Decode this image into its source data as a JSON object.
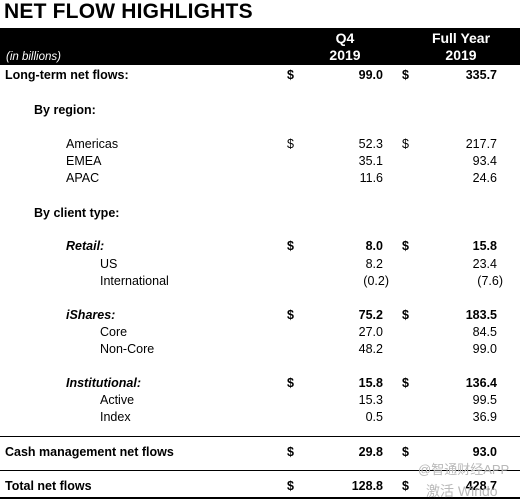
{
  "title": "NET FLOW HIGHLIGHTS",
  "units": "(in billions)",
  "columns": {
    "q4_line1": "Q4",
    "q4_line2": "2019",
    "fy_line1": "Full Year",
    "fy_line2": "2019"
  },
  "currency": "$",
  "rows": [
    {
      "label": "Long-term net flows:",
      "q4": "99.0",
      "fy": "335.7"
    },
    {
      "label": "By region:"
    },
    {
      "label": "Americas",
      "q4": "52.3",
      "fy": "217.7"
    },
    {
      "label": "EMEA",
      "q4": "35.1",
      "fy": "93.4"
    },
    {
      "label": "APAC",
      "q4": "11.6",
      "fy": "24.6"
    },
    {
      "label": "By client type:"
    },
    {
      "label": "Retail:",
      "q4": "8.0",
      "fy": "15.8"
    },
    {
      "label": "US",
      "q4": "8.2",
      "fy": "23.4"
    },
    {
      "label": "International",
      "q4": "(0.2)",
      "fy": "(7.6)"
    },
    {
      "label": "iShares:",
      "q4": "75.2",
      "fy": "183.5"
    },
    {
      "label": "Core",
      "q4": "27.0",
      "fy": "84.5"
    },
    {
      "label": "Non-Core",
      "q4": "48.2",
      "fy": "99.0"
    },
    {
      "label": "Institutional:",
      "q4": "15.8",
      "fy": "136.4"
    },
    {
      "label": "Active",
      "q4": "15.3",
      "fy": "99.5"
    },
    {
      "label": "Index",
      "q4": "0.5",
      "fy": "36.9"
    },
    {
      "label": "Cash management net flows",
      "q4": "29.8",
      "fy": "93.0"
    },
    {
      "label": "Total net flows",
      "q4": "128.8",
      "fy": "428.7"
    }
  ],
  "watermark": {
    "line1": "@智通财经APP",
    "line2": "激活 Windo"
  }
}
